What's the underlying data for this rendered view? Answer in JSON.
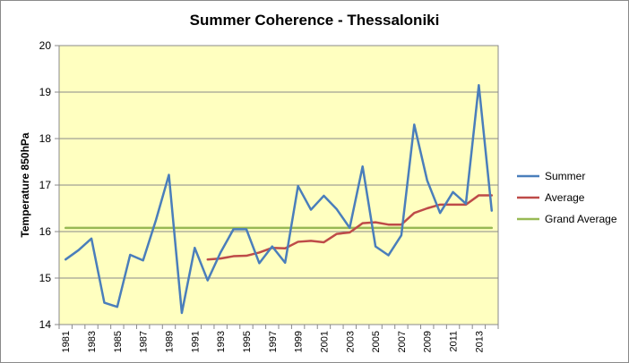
{
  "chart_data": {
    "type": "line",
    "title": "Summer Coherence - Thessaloniki",
    "xlabel": "",
    "ylabel": "Temperature 850hPa",
    "ylim": [
      14,
      20
    ],
    "y_ticks": [
      14,
      15,
      16,
      17,
      18,
      19,
      20
    ],
    "x": [
      1981,
      1982,
      1983,
      1984,
      1985,
      1986,
      1987,
      1988,
      1989,
      1990,
      1991,
      1992,
      1993,
      1994,
      1995,
      1996,
      1997,
      1998,
      1999,
      2000,
      2001,
      2002,
      2003,
      2004,
      2005,
      2006,
      2007,
      2008,
      2009,
      2010,
      2011,
      2012,
      2013,
      2014
    ],
    "x_tick_labels": [
      "1981",
      "1983",
      "1985",
      "1987",
      "1989",
      "1991",
      "1993",
      "1995",
      "1997",
      "1999",
      "2001",
      "2003",
      "2005",
      "2007",
      "2009",
      "2011",
      "2013"
    ],
    "grid": true,
    "plot_background": "#ffffc0",
    "legend_position": "right",
    "series": [
      {
        "name": "Summer",
        "color": "#4a7ebb",
        "values": [
          15.4,
          15.6,
          15.85,
          14.47,
          14.38,
          15.5,
          15.38,
          16.25,
          17.22,
          14.25,
          15.65,
          14.95,
          15.55,
          16.05,
          16.05,
          15.32,
          15.68,
          15.33,
          16.98,
          16.47,
          16.77,
          16.48,
          16.08,
          17.4,
          15.68,
          15.49,
          15.92,
          18.3,
          17.1,
          16.4,
          16.85,
          16.6,
          19.15,
          16.45
        ]
      },
      {
        "name": "Average",
        "color": "#be4b48",
        "values": [
          null,
          null,
          null,
          null,
          null,
          null,
          null,
          null,
          null,
          null,
          null,
          15.4,
          15.42,
          15.47,
          15.48,
          15.55,
          15.65,
          15.64,
          15.78,
          15.8,
          15.77,
          15.95,
          15.98,
          16.18,
          16.2,
          16.15,
          16.15,
          16.4,
          16.5,
          16.58,
          16.58,
          16.58,
          16.78,
          16.78
        ]
      },
      {
        "name": "Grand Average",
        "color": "#98b954",
        "values": [
          16.08,
          16.08,
          16.08,
          16.08,
          16.08,
          16.08,
          16.08,
          16.08,
          16.08,
          16.08,
          16.08,
          16.08,
          16.08,
          16.08,
          16.08,
          16.08,
          16.08,
          16.08,
          16.08,
          16.08,
          16.08,
          16.08,
          16.08,
          16.08,
          16.08,
          16.08,
          16.08,
          16.08,
          16.08,
          16.08,
          16.08,
          16.08,
          16.08,
          16.08
        ]
      }
    ]
  }
}
